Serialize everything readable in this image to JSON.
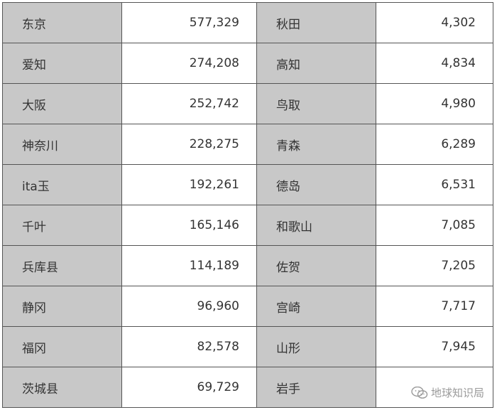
{
  "rows": [
    {
      "pref1": "东京",
      "val1": "577,329",
      "pref2": "秋田",
      "val2": "4,302"
    },
    {
      "pref1": "爱知",
      "val1": "274,208",
      "pref2": "高知",
      "val2": "4,834"
    },
    {
      "pref1": "大阪",
      "val1": "252,742",
      "pref2": "鸟取",
      "val2": "4,980"
    },
    {
      "pref1": "神奈川",
      "val1": "228,275",
      "pref2": "青森",
      "val2": "6,289"
    },
    {
      "pref1": "ita玉",
      "val1": "192,261",
      "pref2": "德岛",
      "val2": "6,531"
    },
    {
      "pref1": "千叶",
      "val1": "165,146",
      "pref2": "和歌山",
      "val2": "7,085"
    },
    {
      "pref1": "兵库县",
      "val1": "114,189",
      "pref2": "佐贺",
      "val2": "7,205"
    },
    {
      "pref1": "静冈",
      "val1": "96,960",
      "pref2": "宫崎",
      "val2": "7,717"
    },
    {
      "pref1": "福冈",
      "val1": "82,578",
      "pref2": "山形",
      "val2": "7,945"
    },
    {
      "pref1": "茨城县",
      "val1": "69,729",
      "pref2": "岩手",
      "val2": ""
    }
  ],
  "watermark": {
    "text": "地球知识局",
    "icon": "wechat-logo-icon"
  },
  "colors": {
    "name_cell_bg": "#c8c8c8",
    "value_cell_bg": "#ffffff",
    "border": "#555555",
    "text": "#333333"
  }
}
